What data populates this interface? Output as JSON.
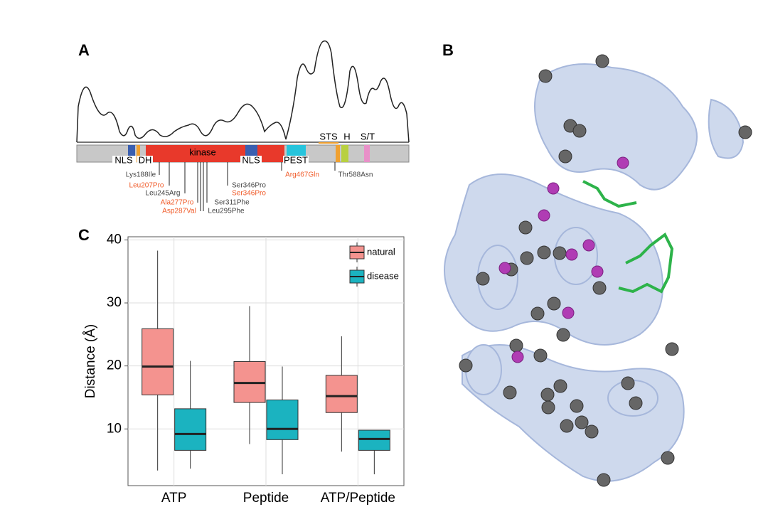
{
  "panel_labels": [
    "A",
    "B",
    "C"
  ],
  "domain_map": {
    "domains": [
      "NLS",
      "DH",
      "kinase",
      "NLS",
      "PEST",
      "STS",
      "H",
      "S/T"
    ],
    "mutations": [
      {
        "label": "Lys188Ile",
        "color": "#444444"
      },
      {
        "label": "Leu207Pro",
        "color": "#f05a28"
      },
      {
        "label": "Leu245Arg",
        "color": "#444444"
      },
      {
        "label": "Ala277Pro",
        "color": "#f05a28"
      },
      {
        "label": "Asp287Val",
        "color": "#f05a28"
      },
      {
        "label": "Ser311Phe",
        "color": "#444444"
      },
      {
        "label": "Leu295Phe",
        "color": "#444444"
      },
      {
        "label": "Ser346Pro",
        "color": "#444444"
      },
      {
        "label": "Ser346Pro",
        "color": "#f05a28"
      },
      {
        "label": "Arg467Gln",
        "color": "#f05a28"
      },
      {
        "label": "Thr588Asn",
        "color": "#444444"
      }
    ]
  },
  "chart_data": {
    "type": "box",
    "y_label": "Distance (Å)",
    "categories": [
      "ATP",
      "Peptide",
      "ATP/Peptide"
    ],
    "series": [
      {
        "name": "natural",
        "color": "#f4938f",
        "min": [
          3.4,
          7.6,
          6.4
        ],
        "q1": [
          15.4,
          14.2,
          12.6
        ],
        "median": [
          19.9,
          17.3,
          15.2
        ],
        "q3": [
          25.9,
          20.7,
          18.5
        ],
        "max": [
          38.3,
          29.5,
          24.7
        ]
      },
      {
        "name": "disease",
        "color": "#1bb3c0",
        "min": [
          3.7,
          2.8,
          2.8
        ],
        "q1": [
          6.6,
          8.3,
          6.6
        ],
        "median": [
          9.2,
          10,
          8.4
        ],
        "q3": [
          13.2,
          14.6,
          9.8
        ],
        "max": [
          20.8,
          19.9,
          9.8
        ]
      }
    ],
    "ylim": [
      1,
      40.5
    ],
    "yticks": [
      10,
      20,
      30,
      40
    ],
    "grid": true,
    "legend": "top-right"
  }
}
